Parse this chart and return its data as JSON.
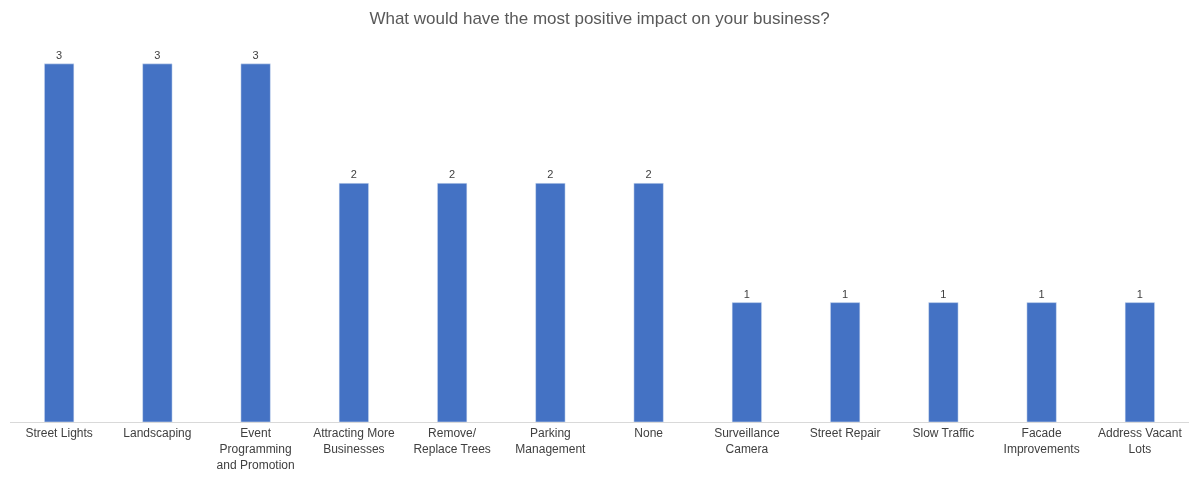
{
  "chart_data": {
    "type": "bar",
    "title": "What would have the most positive impact on your business?",
    "categories": [
      "Street Lights",
      "Landscaping",
      "Event\nProgramming\nand Promotion",
      "Attracting More\nBusinesses",
      "Remove/\nReplace Trees",
      "Parking\nManagement",
      "None",
      "Surveillance\nCamera",
      "Street Repair",
      "Slow Traffic",
      "Facade\nImprovements",
      "Address Vacant\nLots"
    ],
    "values": [
      3,
      3,
      3,
      2,
      2,
      2,
      2,
      1,
      1,
      1,
      1,
      1
    ],
    "color": "#4472c4",
    "data_labels": true
  }
}
